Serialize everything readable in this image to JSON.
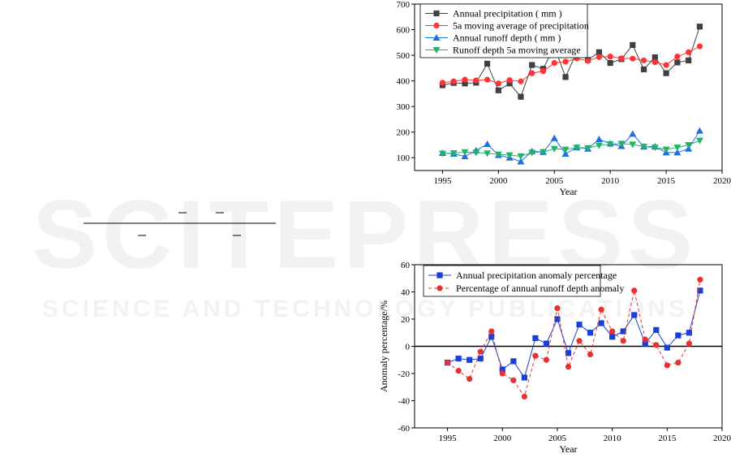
{
  "watermark": {
    "title": "SCITEPRESS",
    "subtitle": "SCIENCE AND TECHNOLOGY PUBLICATIONS"
  },
  "chart_data": [
    {
      "type": "line",
      "title": "",
      "xlabel": "Year",
      "ylabel": "",
      "xlim": [
        1992.5,
        2020
      ],
      "ylim": [
        50,
        700
      ],
      "xticks": [
        1995,
        2000,
        2005,
        2010,
        2015,
        2020
      ],
      "yticks": [
        100,
        200,
        300,
        400,
        500,
        600,
        700
      ],
      "legend_position": "top-left",
      "x": [
        1995,
        1996,
        1997,
        1998,
        1999,
        2000,
        2001,
        2002,
        2003,
        2004,
        2005,
        2006,
        2007,
        2008,
        2009,
        2010,
        2011,
        2012,
        2013,
        2014,
        2015,
        2016,
        2017,
        2018
      ],
      "series": [
        {
          "name": "Annual precipitation ( mm )",
          "color": "#404040",
          "marker": "square",
          "values": [
            383,
            392,
            390,
            393,
            467,
            363,
            390,
            338,
            462,
            447,
            535,
            415,
            512,
            482,
            512,
            470,
            485,
            540,
            445,
            492,
            430,
            472,
            480,
            612
          ]
        },
        {
          "name": "5a moving average of precipitation",
          "color": "#ff3333",
          "marker": "circle",
          "values": [
            393,
            398,
            405,
            402,
            405,
            390,
            403,
            398,
            430,
            438,
            470,
            475,
            488,
            478,
            493,
            495,
            488,
            487,
            480,
            473,
            462,
            495,
            512,
            535
          ]
        },
        {
          "name": "Annual runoff depth ( mm )",
          "color": "#1e6fe0",
          "marker": "triangle-up",
          "values": [
            118,
            115,
            105,
            128,
            153,
            110,
            100,
            85,
            125,
            122,
            176,
            115,
            140,
            135,
            172,
            155,
            145,
            193,
            143,
            143,
            120,
            120,
            135,
            205
          ]
        },
        {
          "name": "Runoff depth 5a moving average",
          "color": "#22b36a",
          "marker": "triangle-down",
          "values": [
            116,
            118,
            122,
            120,
            117,
            113,
            110,
            106,
            120,
            122,
            135,
            132,
            140,
            138,
            148,
            153,
            155,
            152,
            143,
            140,
            132,
            140,
            150,
            167
          ]
        }
      ]
    },
    {
      "type": "line",
      "title": "",
      "xlabel": "Year",
      "ylabel": "Anomaly percentage/%",
      "xlim": [
        1992,
        2020
      ],
      "ylim": [
        -60,
        60
      ],
      "xticks": [
        1995,
        2000,
        2005,
        2010,
        2015,
        2020
      ],
      "yticks": [
        -60,
        -40,
        -20,
        0,
        20,
        40,
        60
      ],
      "legend_position": "top-left",
      "grid": false,
      "x": [
        1995,
        1996,
        1997,
        1998,
        1999,
        2000,
        2001,
        2002,
        2003,
        2004,
        2005,
        2006,
        2007,
        2008,
        2009,
        2010,
        2011,
        2012,
        2013,
        2014,
        2015,
        2016,
        2017,
        2018
      ],
      "series": [
        {
          "name": "Annual precipitation anomaly percentage",
          "color": "#1a3fd6",
          "marker": "square",
          "dash": false,
          "values": [
            -12,
            -9,
            -10,
            -9,
            7,
            -17,
            -11,
            -23,
            6,
            2,
            20,
            -5,
            16,
            10,
            17,
            7,
            11,
            23,
            2,
            12,
            -1,
            8,
            10,
            41
          ]
        },
        {
          "name": "Percentage of annual runoff depth anomaly",
          "color": "#e8312e",
          "marker": "circle",
          "dash": true,
          "values": [
            -12,
            -18,
            -24,
            -4,
            11,
            -20,
            -25,
            -37,
            -7,
            -10,
            28,
            -15,
            4,
            -6,
            27,
            11,
            4,
            41,
            5,
            1,
            -14,
            -12,
            2,
            49
          ]
        }
      ]
    }
  ]
}
